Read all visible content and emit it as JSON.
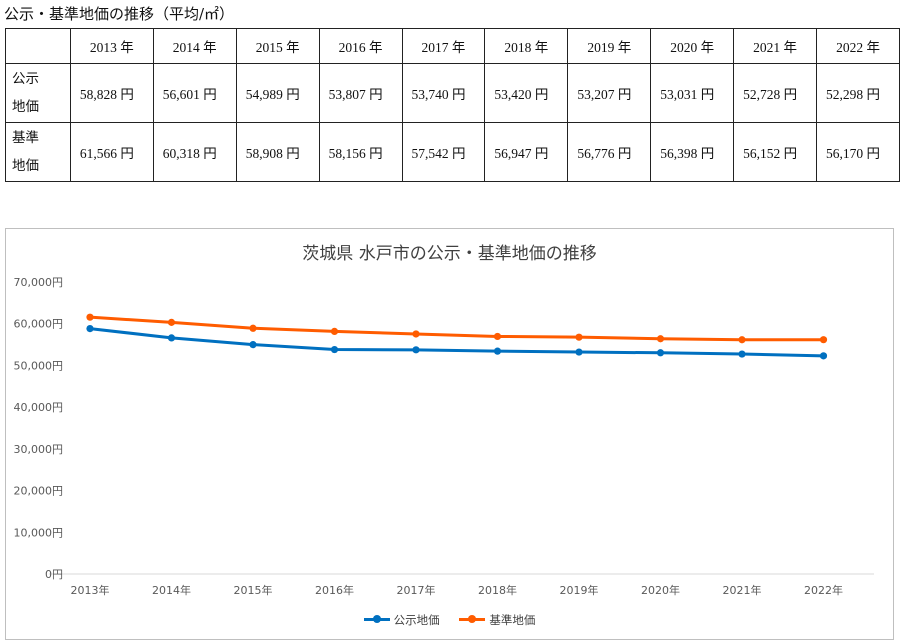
{
  "table": {
    "title": "公示・基準地価の推移（平均/㎡）",
    "years": [
      "2013 年",
      "2014 年",
      "2015 年",
      "2016 年",
      "2017 年",
      "2018 年",
      "2019 年",
      "2020 年",
      "2021 年",
      "2022 年"
    ],
    "rows": [
      {
        "label_line1": "公示",
        "label_line2": "地価",
        "values": [
          "58,828 円",
          "56,601 円",
          "54,989 円",
          "53,807 円",
          "53,740 円",
          "53,420 円",
          "53,207 円",
          "53,031 円",
          "52,728 円",
          "52,298 円"
        ]
      },
      {
        "label_line1": "基準",
        "label_line2": "地価",
        "values": [
          "61,566 円",
          "60,318 円",
          "58,908 円",
          "58,156 円",
          "57,542 円",
          "56,947 円",
          "56,776 円",
          "56,398 円",
          "56,152 円",
          "56,170 円"
        ]
      }
    ]
  },
  "chart_data": {
    "type": "line",
    "title": "茨城県 水戸市の公示・基準地価の推移",
    "categories": [
      "2013年",
      "2014年",
      "2015年",
      "2016年",
      "2017年",
      "2018年",
      "2019年",
      "2020年",
      "2021年",
      "2022年"
    ],
    "series": [
      {
        "name": "公示地価",
        "color": "#0070c0",
        "values": [
          58828,
          56601,
          54989,
          53807,
          53740,
          53420,
          53207,
          53031,
          52728,
          52298
        ]
      },
      {
        "name": "基準地価",
        "color": "#ff5c00",
        "values": [
          61566,
          60318,
          58908,
          58156,
          57542,
          56947,
          56776,
          56398,
          56152,
          56170
        ]
      }
    ],
    "ylim": [
      0,
      70000
    ],
    "yticks": [
      "0円",
      "10,000円",
      "20,000円",
      "30,000円",
      "40,000円",
      "50,000円",
      "60,000円",
      "70,000円"
    ],
    "grid": false,
    "legend_position": "bottom"
  }
}
